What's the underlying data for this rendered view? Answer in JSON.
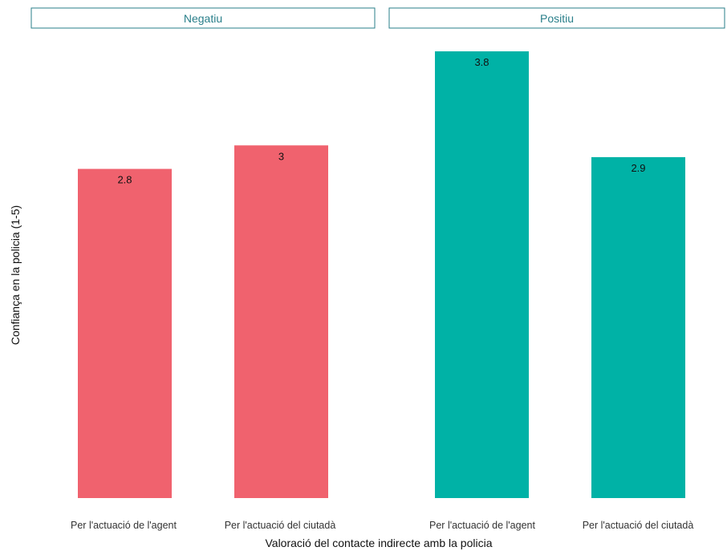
{
  "chart_data": {
    "type": "bar",
    "xlabel": "Valoració del contacte indirecte amb la policia",
    "ylabel": "Confiança en la policia (1-5)",
    "ylim": [
      0,
      3.8
    ],
    "grid": false,
    "categories": [
      "Per l'actuació de l'agent",
      "Per l'actuació del ciutadà"
    ],
    "panels": [
      {
        "name": "Negatiu",
        "color": "#f0626e",
        "values": [
          2.8,
          3
        ],
        "labels": [
          "2.8",
          "3"
        ]
      },
      {
        "name": "Positiu",
        "color": "#00b2a6",
        "values": [
          3.8,
          2.9
        ],
        "labels": [
          "3.8",
          "2.9"
        ]
      }
    ]
  }
}
